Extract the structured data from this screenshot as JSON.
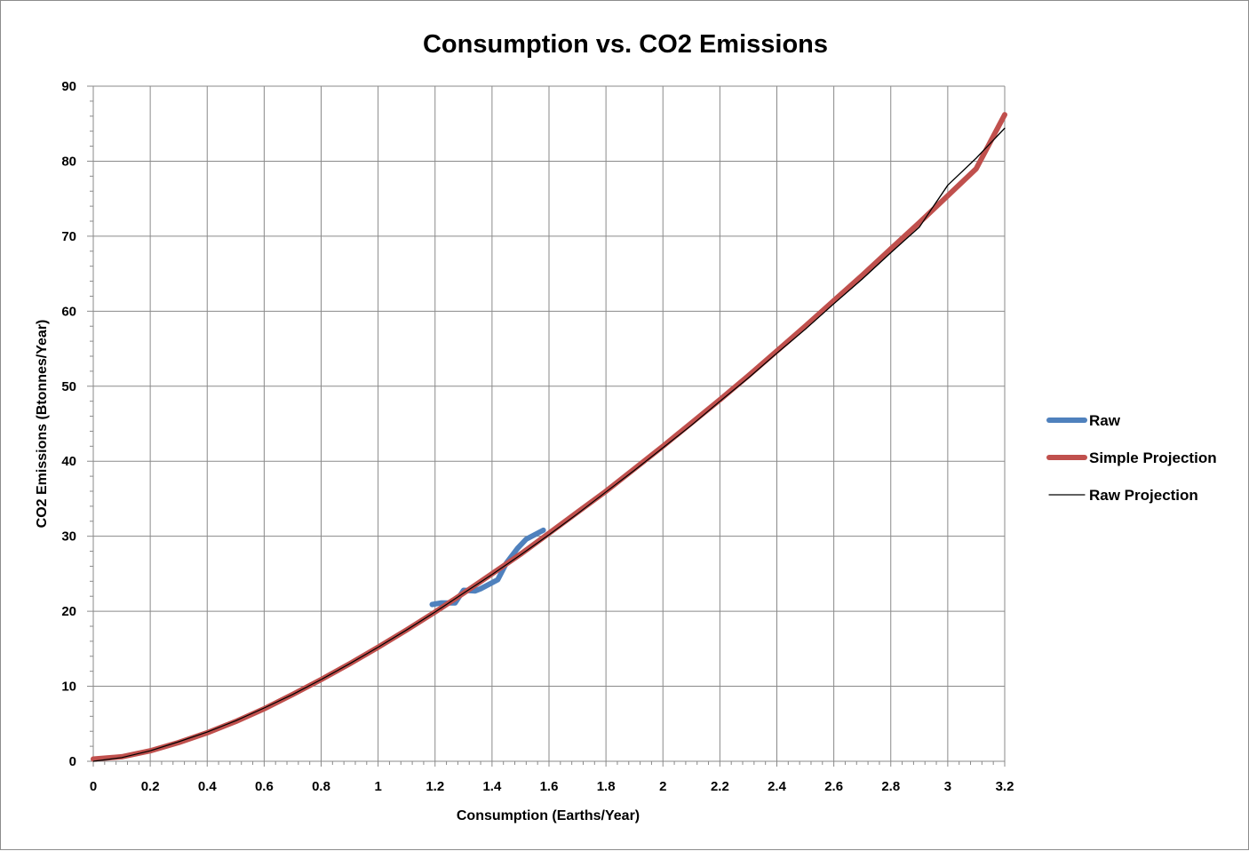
{
  "chart_data": {
    "type": "line",
    "title": "Consumption vs. CO2 Emissions",
    "xlabel": "Consumption (Earths/Year)",
    "ylabel": "CO2 Emissions (Btonnes/Year)",
    "xlim": [
      0,
      3.2
    ],
    "ylim": [
      0,
      90
    ],
    "x_ticks": [
      0,
      0.2,
      0.4,
      0.6,
      0.8,
      1,
      1.2,
      1.4,
      1.6,
      1.8,
      2,
      2.2,
      2.4,
      2.6,
      2.8,
      3,
      3.2
    ],
    "x_tick_labels": [
      "0",
      "0.2",
      "0.4",
      "0.6",
      "0.8",
      "1",
      "1.2",
      "1.4",
      "1.6",
      "1.8",
      "2",
      "2.2",
      "2.4",
      "2.6",
      "2.8",
      "3",
      "3.2"
    ],
    "y_ticks": [
      0,
      10,
      20,
      30,
      40,
      50,
      60,
      70,
      80,
      90
    ],
    "y_tick_labels": [
      "0",
      "10",
      "20",
      "30",
      "40",
      "50",
      "60",
      "70",
      "80",
      "90"
    ],
    "grid": true,
    "legend_position": "right",
    "series": [
      {
        "name": "Raw",
        "color": "#4f81bd",
        "x": [
          1.19,
          1.22,
          1.27,
          1.3,
          1.34,
          1.36,
          1.42,
          1.45,
          1.49,
          1.52,
          1.58
        ],
        "y": [
          20.9,
          21.1,
          21.1,
          22.8,
          22.7,
          23.0,
          24.2,
          26.4,
          28.4,
          29.6,
          30.8
        ]
      },
      {
        "name": "Simple Projection",
        "color": "#c0504d",
        "x": [
          0,
          0.1,
          0.2,
          0.3,
          0.4,
          0.5,
          0.6,
          0.7,
          0.8,
          0.9,
          1.0,
          1.1,
          1.2,
          1.3,
          1.4,
          1.5,
          1.6,
          1.7,
          1.8,
          1.9,
          2.0,
          2.1,
          2.2,
          2.3,
          2.4,
          2.5,
          2.6,
          2.7,
          2.8,
          2.9,
          3.0,
          3.1,
          3.2
        ],
        "y": [
          0.3,
          0.6,
          1.4,
          2.5,
          3.8,
          5.3,
          7.0,
          8.9,
          10.9,
          13.0,
          15.2,
          17.5,
          19.9,
          22.4,
          25.0,
          27.6,
          30.4,
          33.2,
          36.0,
          39.0,
          42.0,
          45.1,
          48.2,
          51.4,
          54.7,
          58.0,
          61.4,
          64.8,
          68.3,
          71.8,
          75.4,
          79.0,
          86.2
        ]
      },
      {
        "name": "Raw Projection",
        "color": "#000000",
        "x": [
          0,
          0.1,
          0.2,
          0.3,
          0.4,
          0.5,
          0.6,
          0.7,
          0.8,
          0.9,
          1.0,
          1.1,
          1.2,
          1.3,
          1.4,
          1.5,
          1.6,
          1.7,
          1.8,
          1.9,
          2.0,
          2.1,
          2.2,
          2.3,
          2.4,
          2.5,
          2.6,
          2.7,
          2.8,
          2.9,
          3.0,
          3.1,
          3.2
        ],
        "y": [
          0.0,
          0.5,
          1.4,
          2.6,
          3.9,
          5.4,
          7.1,
          8.9,
          10.9,
          13.0,
          15.2,
          17.5,
          19.9,
          22.4,
          24.9,
          27.5,
          30.2,
          33.0,
          35.9,
          38.8,
          41.8,
          44.8,
          48.0,
          51.1,
          54.4,
          57.6,
          61.0,
          64.3,
          67.8,
          71.2,
          76.8,
          80.4,
          84.4
        ]
      }
    ]
  }
}
